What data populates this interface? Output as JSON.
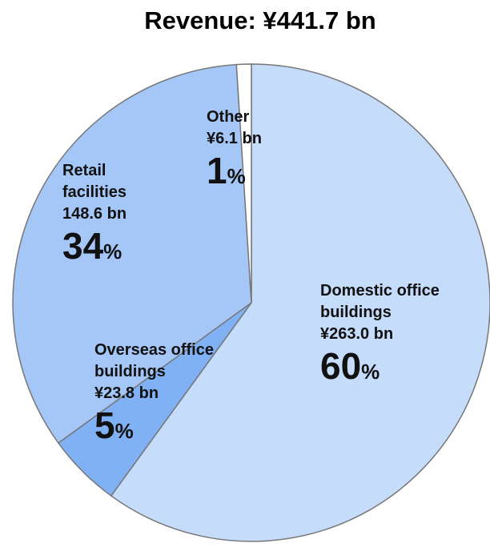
{
  "chart_data": {
    "type": "pie",
    "title": "Revenue: ¥441.7 bn",
    "categories": [
      "Domestic office buildings",
      "Overseas office buildings",
      "Retail facilities",
      "Other"
    ],
    "amounts": [
      "¥263.0 bn",
      "¥23.8 bn",
      "148.6 bn",
      "¥6.1 bn"
    ],
    "values": [
      60,
      5,
      34,
      1
    ],
    "value_labels": [
      "60%",
      "5%",
      "34%",
      "1%"
    ],
    "colors": [
      "#c6dcfb",
      "#80b1f5",
      "#a4c7f8",
      "#ffffff"
    ]
  }
}
